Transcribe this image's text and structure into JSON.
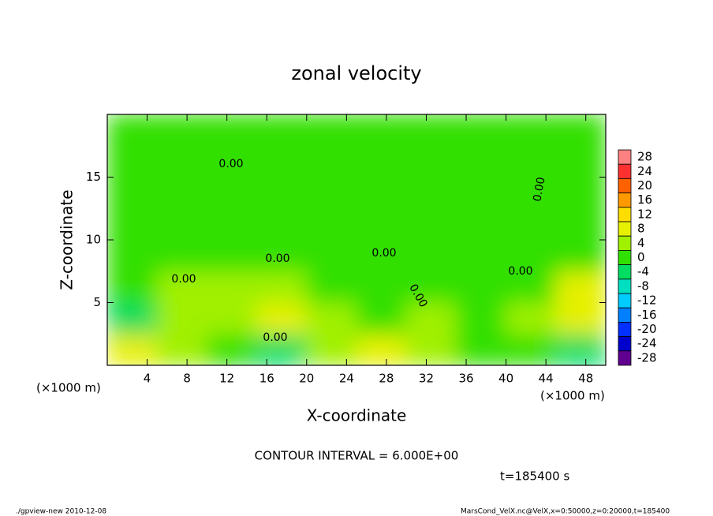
{
  "chart_data": {
    "type": "heatmap",
    "title": "zonal velocity",
    "x_label": "X-coordinate",
    "y_label": "Z-coordinate",
    "x_unit": "(×1000 m)",
    "contour_label": "0.00",
    "note": "CONTOUR INTERVAL = 6.000E+00",
    "time": "t=185400 s",
    "footer_left": "./gpview-new  2010-12-08",
    "footer_right": "MarsCond_VelX.nc@VelX,x=0:50000,z=0:20000,t=185400",
    "xlim": [
      0,
      50
    ],
    "ylim": [
      0,
      20
    ],
    "xticks": [
      4,
      8,
      12,
      16,
      20,
      24,
      28,
      32,
      36,
      40,
      44,
      48
    ],
    "yticks": [
      5,
      10,
      15
    ],
    "x": [
      2.5,
      7.5,
      12.5,
      17.5,
      22.5,
      27.5,
      32.5,
      37.5,
      42.5,
      47.5
    ],
    "y": [
      1.25,
      3.75,
      6.25,
      8.75,
      11.25,
      13.75,
      16.25,
      18.75
    ],
    "z": [
      [
        6,
        2,
        -2,
        -6,
        2,
        6,
        2,
        -2,
        0,
        -6
      ],
      [
        -6,
        2,
        4,
        6,
        2,
        0,
        2,
        -2,
        2,
        6
      ],
      [
        0,
        2,
        4,
        2,
        -2,
        -2,
        0,
        -2,
        0,
        6
      ],
      [
        1,
        1,
        1,
        1,
        0,
        -1,
        -1,
        0,
        0,
        1
      ],
      [
        1,
        1,
        1,
        1,
        1,
        1,
        1,
        0,
        0,
        1
      ],
      [
        1,
        1,
        0,
        0,
        1,
        1,
        1,
        1,
        1,
        0
      ],
      [
        1,
        1,
        0,
        0,
        0,
        1,
        1,
        0,
        1,
        1
      ],
      [
        1,
        1,
        1,
        1,
        1,
        1,
        1,
        1,
        1,
        1
      ]
    ],
    "colorbar": {
      "ticks": [
        28,
        24,
        20,
        16,
        12,
        8,
        4,
        0,
        -4,
        -8,
        -12,
        -16,
        -20,
        -24,
        -28
      ],
      "colors": [
        "#ff8080",
        "#ff3030",
        "#ff6000",
        "#ff9900",
        "#ffdd00",
        "#e6f000",
        "#a0f000",
        "#30e000",
        "#00dd60",
        "#00e0c0",
        "#00ccff",
        "#0080ff",
        "#0030ff",
        "#0000cc",
        "#600090"
      ]
    }
  }
}
